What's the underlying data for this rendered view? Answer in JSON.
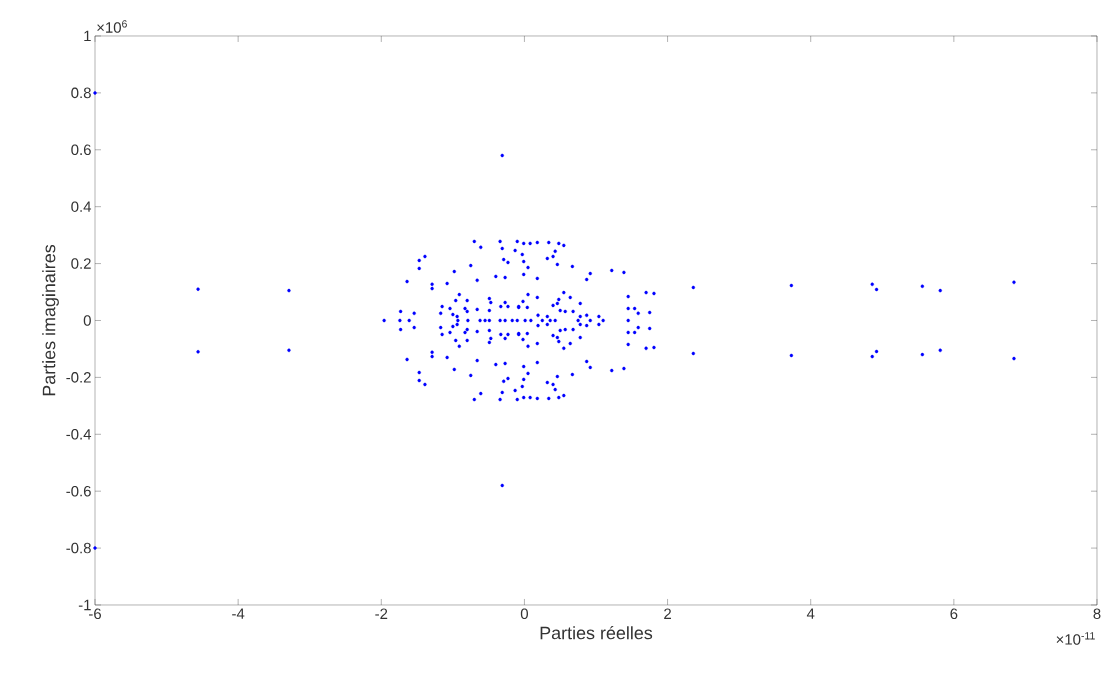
{
  "chart_data": {
    "type": "scatter",
    "xlabel": "Parties réelles",
    "ylabel": "Parties imaginaires",
    "annotations": [
      "×10$^{6}$",
      "×10$^{-11}$"
    ],
    "xlim": [
      -6,
      8
    ],
    "ylim": [
      -1,
      1
    ],
    "xticks": [
      -6,
      -4,
      -2,
      0,
      2,
      4,
      6,
      8
    ],
    "yticks": [
      -1,
      -0.8,
      -0.6,
      -0.4,
      -0.2,
      0,
      0.2,
      0.4,
      0.6,
      0.8,
      1
    ],
    "marker": "circle",
    "grid": false,
    "series": [
      {
        "color": "#0000ff",
        "x": [
          -0.7,
          -0.61,
          -0.34,
          -0.1,
          -0.31,
          -0.13,
          -1.39,
          -1.47,
          -0.29,
          -0.23,
          -1.47,
          -0.75,
          -0.98,
          -0.4,
          -0.27,
          -0.66,
          -1.64,
          -1.29,
          -1.29,
          -1.08,
          -0.91,
          -0.96,
          -0.8,
          -0.49,
          -0.47,
          -0.27,
          -1.15,
          -1.04,
          -0.83,
          -0.66,
          -0.49,
          -0.33,
          -0.23,
          -1.73,
          -1.54,
          -1.17,
          -1.0,
          -0.8,
          -0.94,
          -0.08,
          -0.01,
          0.08,
          0.18,
          0.34,
          0.48,
          0.55,
          -0.03,
          0.43,
          0.4,
          0.32,
          -0.01,
          0.05,
          0.46,
          0.67,
          -0.01,
          0.18,
          0.92,
          0.87,
          1.22,
          1.39,
          1.7,
          1.81,
          1.45,
          0.05,
          0.18,
          0.55,
          0.64,
          0.48,
          0.46,
          0.4,
          0.78,
          0.68,
          0.57,
          -0.02,
          -0.08,
          0.04,
          0.5,
          1.45,
          1.54,
          1.59,
          1.75,
          0.87,
          0.78,
          1.04,
          0.32,
          0.19,
          -4.56,
          -3.29,
          2.36,
          3.73,
          4.86,
          4.92,
          5.56,
          5.81,
          6.84,
          -0.31,
          -6.0,
          -1.96,
          -1.74,
          -1.61,
          -0.93,
          -0.79,
          -0.62,
          -0.55,
          -0.49,
          -0.34,
          -0.27,
          -0.17,
          -0.1,
          0.01,
          0.09,
          0.25,
          0.36,
          0.43,
          0.75,
          0.92,
          1.1,
          1.45,
          -0.7,
          -0.61,
          -0.34,
          -0.1,
          -0.31,
          -0.13,
          -1.39,
          -1.47,
          -0.29,
          -0.23,
          -1.47,
          -0.75,
          -0.98,
          -0.4,
          -0.27,
          -0.66,
          -1.64,
          -1.29,
          -1.29,
          -1.08,
          -0.91,
          -0.96,
          -0.8,
          -0.49,
          -0.47,
          -0.27,
          -1.15,
          -1.04,
          -0.83,
          -0.66,
          -0.49,
          -0.33,
          -0.23,
          -1.73,
          -1.54,
          -1.17,
          -1.0,
          -0.8,
          -0.94,
          -0.08,
          -0.01,
          0.08,
          0.18,
          0.34,
          0.48,
          0.55,
          -0.03,
          0.43,
          0.4,
          0.32,
          -0.01,
          0.05,
          0.46,
          0.67,
          -0.01,
          0.18,
          0.92,
          0.87,
          1.22,
          1.39,
          1.7,
          1.81,
          1.45,
          0.05,
          0.18,
          0.55,
          0.64,
          0.48,
          0.46,
          0.4,
          0.78,
          0.68,
          0.57,
          -0.02,
          -0.08,
          0.04,
          0.5,
          1.45,
          1.54,
          1.59,
          1.75,
          0.87,
          0.78,
          1.04,
          0.32,
          0.19,
          -4.56,
          -3.29,
          2.36,
          3.73,
          4.86,
          4.92,
          5.56,
          5.81,
          6.84,
          -0.31,
          -6.0
        ],
        "values": [
          0.278,
          0.257,
          0.278,
          0.278,
          0.253,
          0.246,
          0.225,
          0.211,
          0.214,
          0.204,
          0.183,
          0.193,
          0.172,
          0.155,
          0.151,
          0.141,
          0.137,
          0.127,
          0.112,
          0.13,
          0.091,
          0.07,
          0.07,
          0.077,
          0.063,
          0.063,
          0.049,
          0.042,
          0.042,
          0.039,
          0.035,
          0.049,
          0.049,
          0.032,
          0.025,
          0.025,
          0.021,
          0.032,
          0.014,
          0.049,
          0.271,
          0.271,
          0.274,
          0.274,
          0.271,
          0.264,
          0.232,
          0.243,
          0.225,
          0.218,
          0.207,
          0.186,
          0.197,
          0.19,
          0.162,
          0.148,
          0.165,
          0.144,
          0.176,
          0.169,
          0.098,
          0.095,
          0.084,
          0.091,
          0.081,
          0.098,
          0.081,
          0.074,
          0.06,
          0.053,
          0.06,
          0.032,
          0.032,
          0.067,
          0.046,
          0.046,
          0.035,
          0.042,
          0.042,
          0.025,
          0.028,
          0.018,
          0.014,
          0.014,
          0.014,
          0.018,
          0.11,
          0.105,
          0.116,
          0.123,
          0.127,
          0.109,
          0.12,
          0.105,
          0.134,
          0.58,
          0.8,
          0,
          0,
          0,
          0,
          0,
          0,
          0,
          0,
          0,
          0,
          0,
          0,
          0,
          0,
          0,
          0,
          0,
          0,
          0,
          0,
          0,
          -0.278,
          -0.257,
          -0.278,
          -0.278,
          -0.253,
          -0.246,
          -0.225,
          -0.211,
          -0.214,
          -0.204,
          -0.183,
          -0.193,
          -0.172,
          -0.155,
          -0.151,
          -0.141,
          -0.137,
          -0.127,
          -0.112,
          -0.13,
          -0.091,
          -0.07,
          -0.07,
          -0.077,
          -0.063,
          -0.063,
          -0.049,
          -0.042,
          -0.042,
          -0.039,
          -0.035,
          -0.049,
          -0.049,
          -0.032,
          -0.025,
          -0.025,
          -0.021,
          -0.032,
          -0.014,
          -0.049,
          -0.271,
          -0.271,
          -0.274,
          -0.274,
          -0.271,
          -0.264,
          -0.232,
          -0.243,
          -0.225,
          -0.218,
          -0.207,
          -0.186,
          -0.197,
          -0.19,
          -0.162,
          -0.148,
          -0.165,
          -0.144,
          -0.176,
          -0.169,
          -0.098,
          -0.095,
          -0.084,
          -0.091,
          -0.081,
          -0.098,
          -0.081,
          -0.074,
          -0.06,
          -0.053,
          -0.06,
          -0.032,
          -0.032,
          -0.067,
          -0.046,
          -0.046,
          -0.035,
          -0.042,
          -0.042,
          -0.025,
          -0.028,
          -0.018,
          -0.014,
          -0.014,
          -0.014,
          -0.018,
          -0.11,
          -0.105,
          -0.116,
          -0.123,
          -0.127,
          -0.109,
          -0.12,
          -0.105,
          -0.134,
          -0.58,
          -0.8
        ]
      }
    ]
  }
}
